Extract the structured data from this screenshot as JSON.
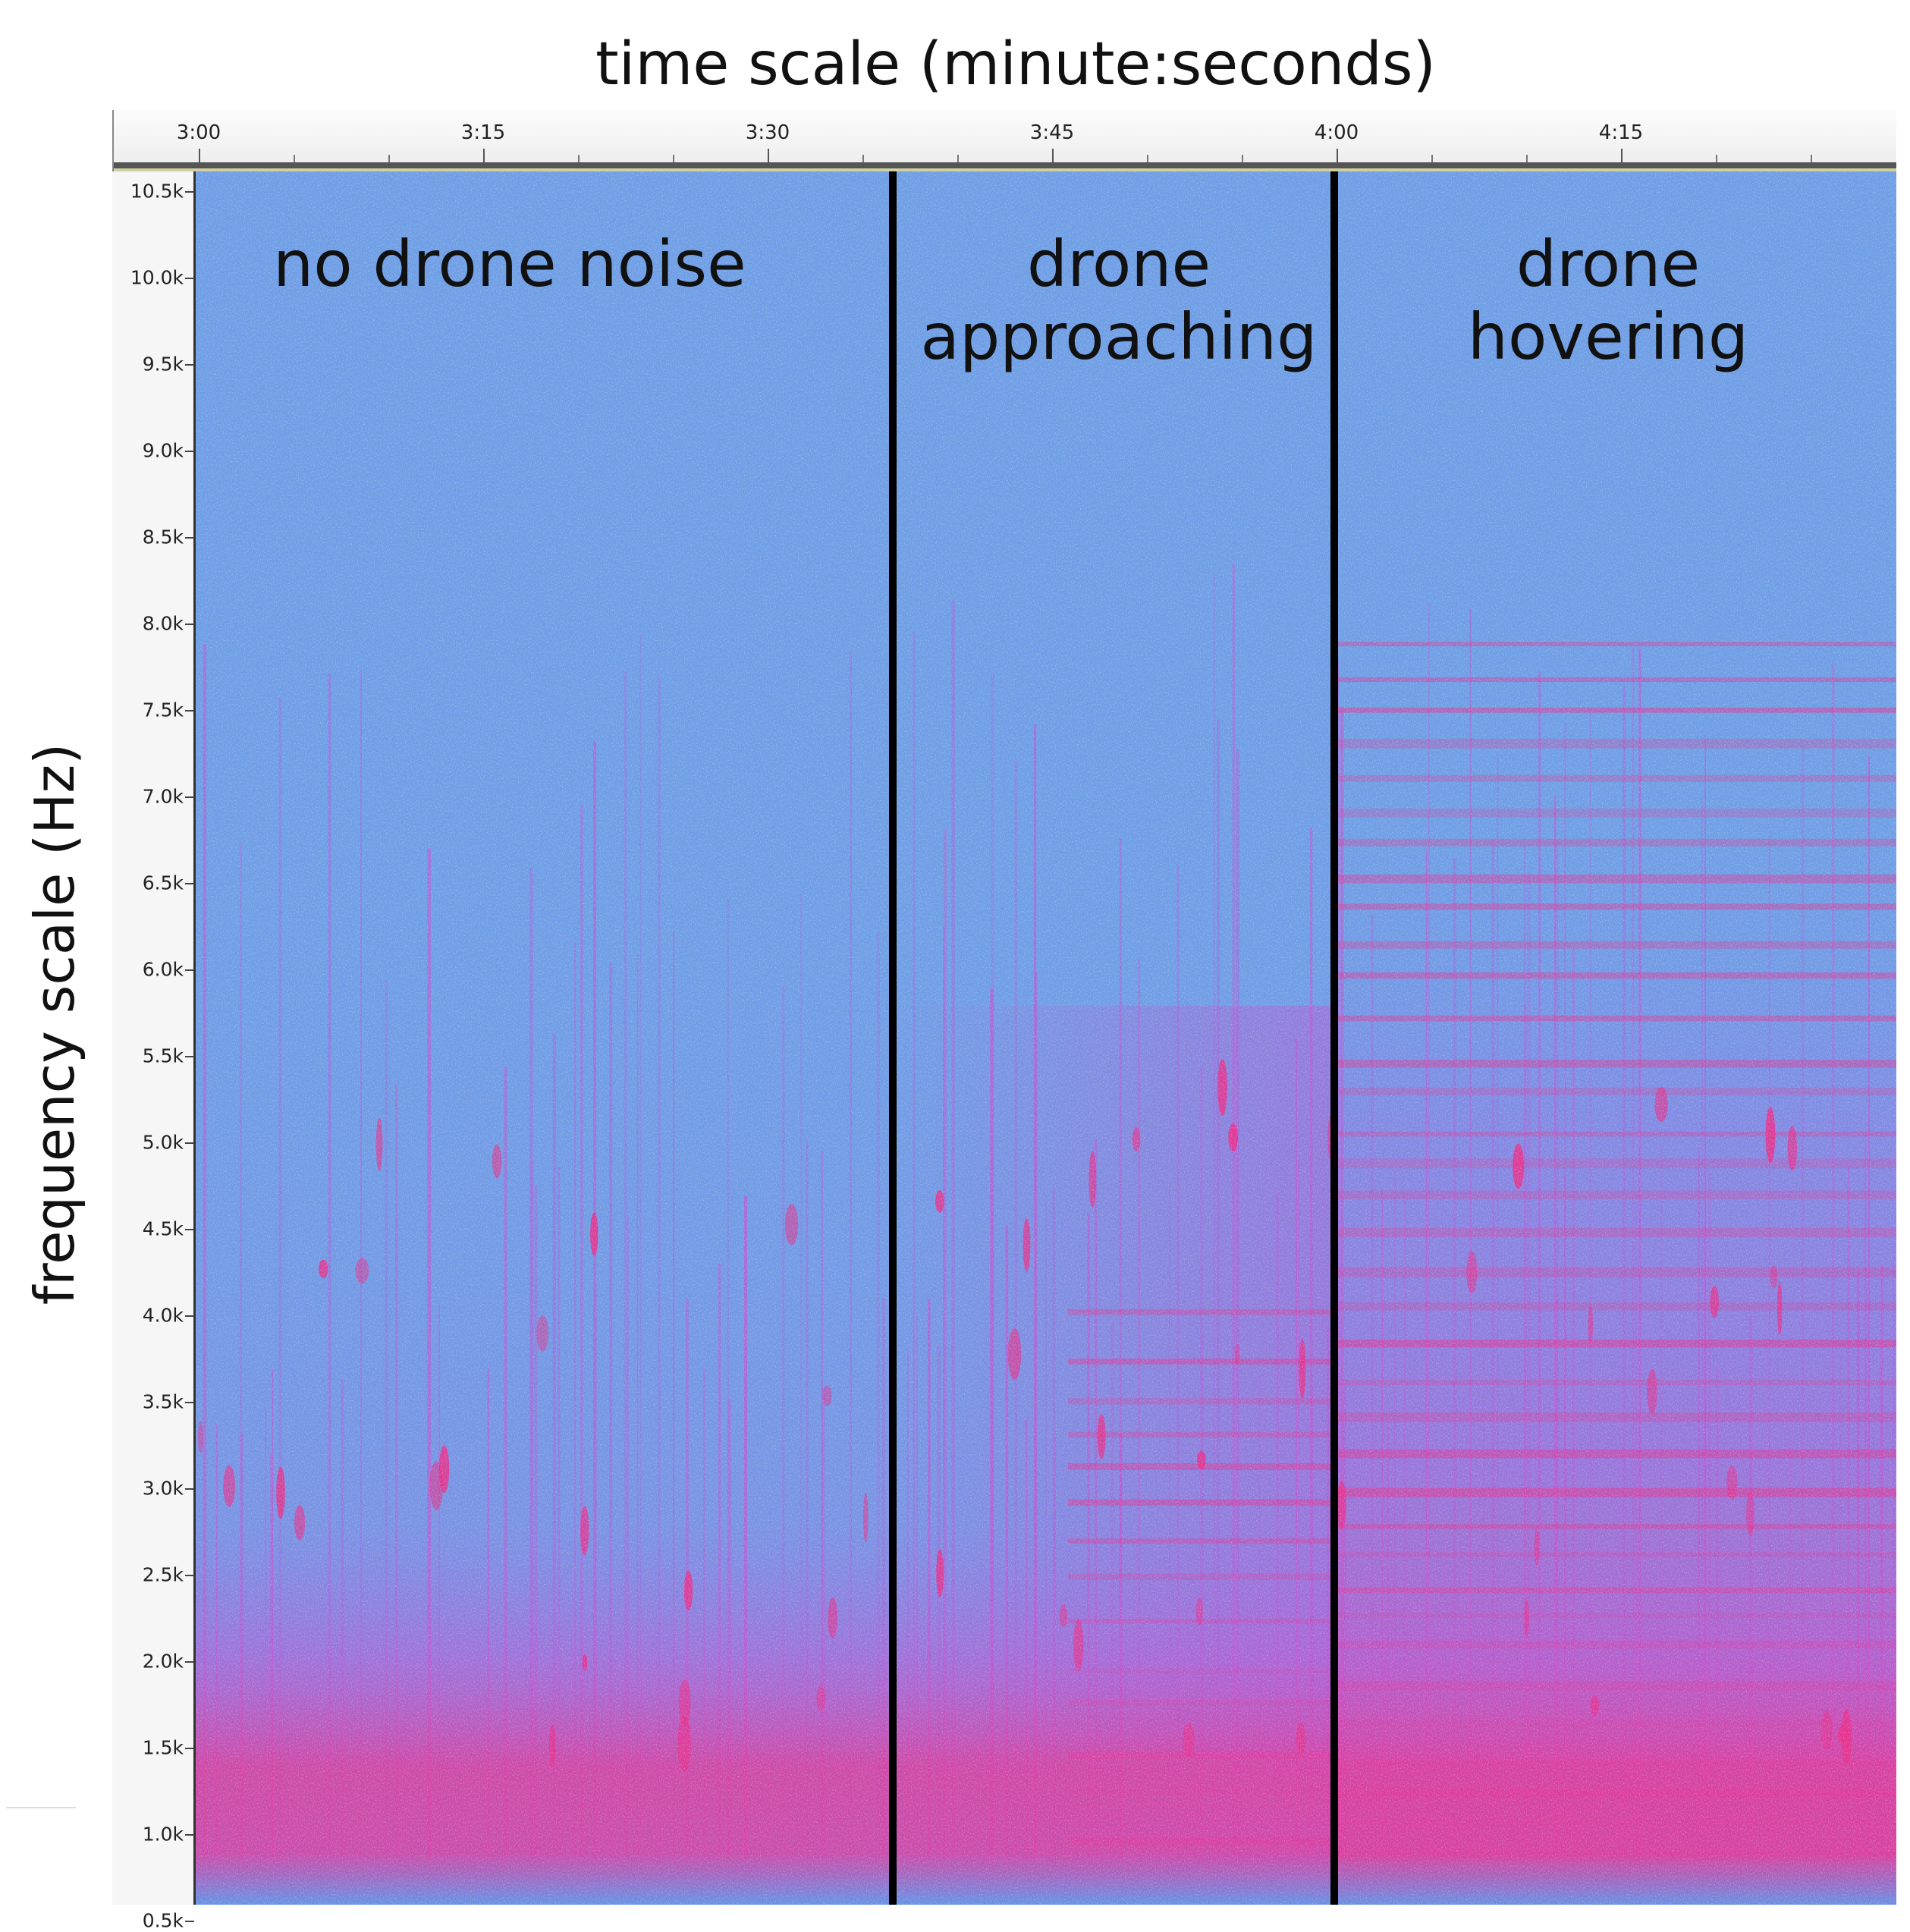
{
  "chart_data": {
    "type": "heatmap",
    "title": "time scale (minute:seconds)",
    "ylabel": "frequency scale (Hz)",
    "x_ticks": [
      "3:00",
      "3:15",
      "3:30",
      "3:45",
      "4:00",
      "4:15"
    ],
    "x_range_seconds": [
      180,
      270
    ],
    "y_ticks": [
      "10.5k",
      "10.0k",
      "9.5k",
      "9.0k",
      "8.5k",
      "8.0k",
      "7.5k",
      "7.0k",
      "6.5k",
      "6.0k",
      "5.5k",
      "5.0k",
      "4.5k",
      "4.0k",
      "3.5k",
      "3.0k",
      "2.5k",
      "2.0k",
      "1.5k",
      "1.0k",
      "0.5k"
    ],
    "y_range_hz": [
      500,
      10500
    ],
    "segments": [
      {
        "label": "no drone noise",
        "start": "3:00",
        "end": "3:37"
      },
      {
        "label_lines": [
          "drone",
          "approaching"
        ],
        "start": "3:37",
        "end": "4:00"
      },
      {
        "label_lines": [
          "drone",
          "hovering"
        ],
        "start": "4:00",
        "end": "4:30"
      }
    ],
    "colors": {
      "low": "#6d9ce6",
      "noise": "#b9c7d8",
      "high": "#e8358f",
      "mid": "#b45fd8"
    }
  }
}
